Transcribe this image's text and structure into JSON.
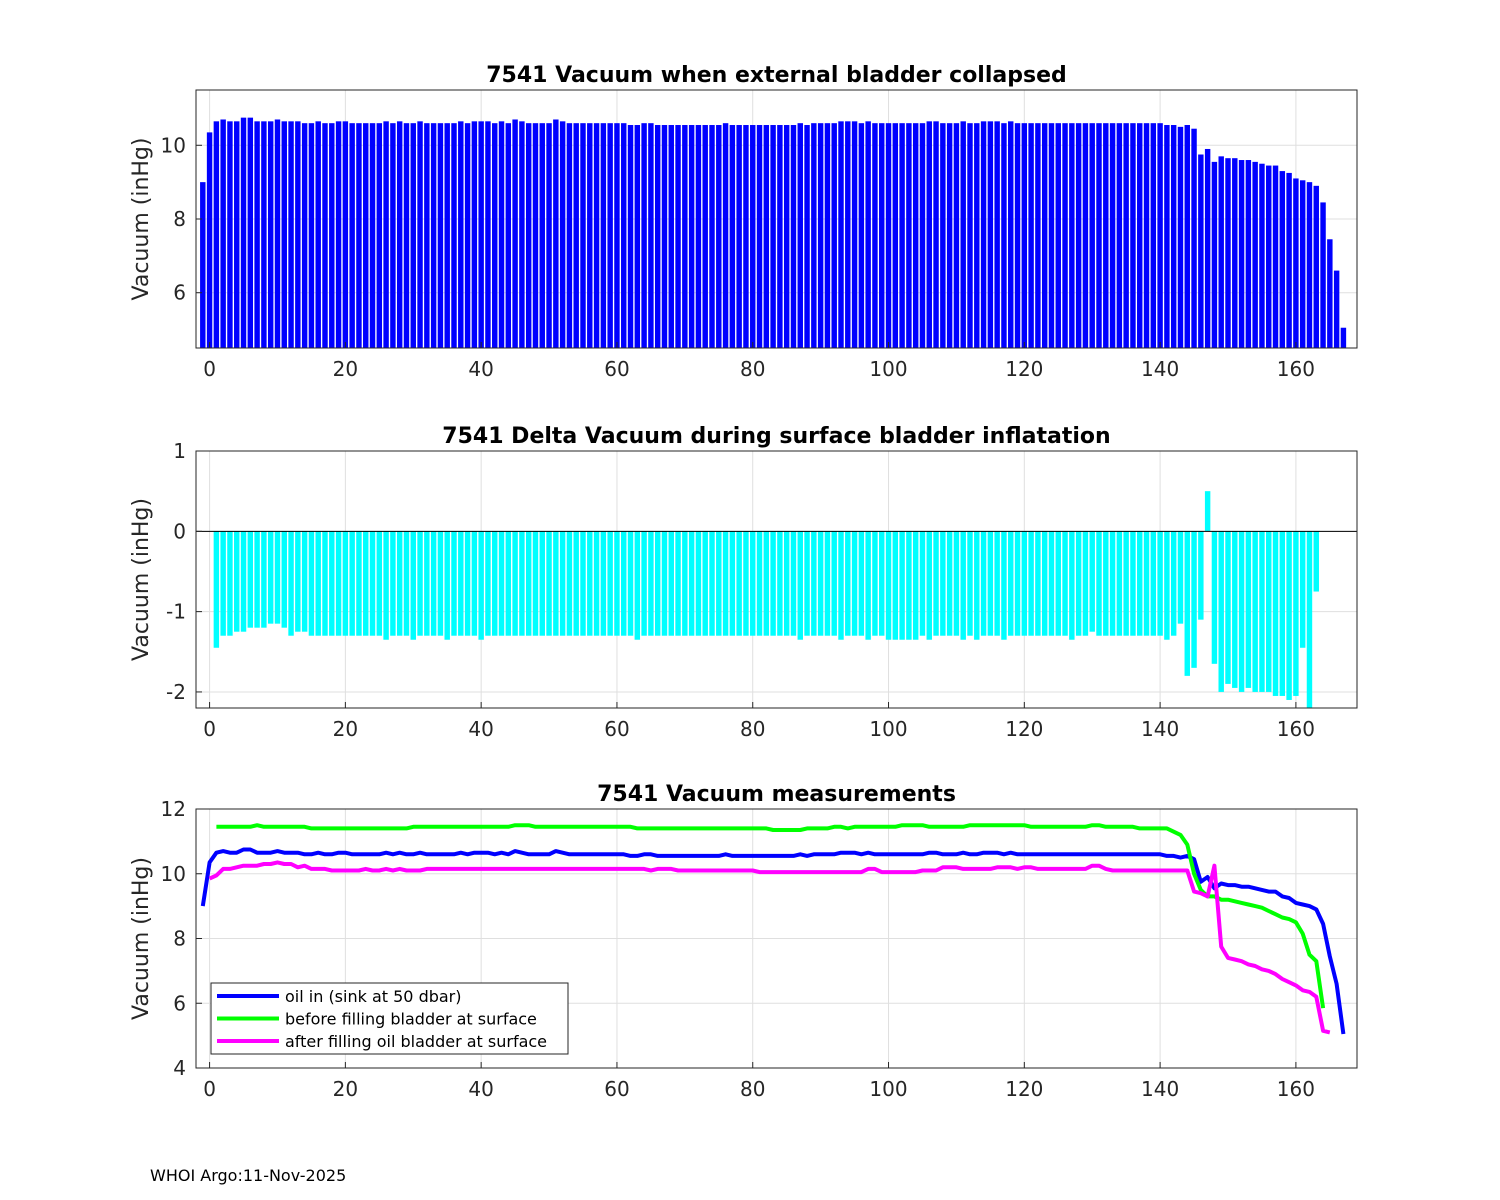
{
  "chart_data": [
    {
      "type": "bar",
      "title": "7541 Vacuum when external bladder collapsed",
      "xlabel": "",
      "ylabel": "Vacuum (inHg)",
      "xlim": [
        -2,
        169
      ],
      "ylim": [
        4.5,
        11.5
      ],
      "xticks": [
        0,
        20,
        40,
        60,
        80,
        100,
        120,
        140,
        160
      ],
      "yticks": [
        6,
        8,
        10
      ],
      "grid": true,
      "color": "#0000ff",
      "x_start": -1,
      "series": [
        {
          "name": "vacuum",
          "values": [
            9.0,
            10.35,
            10.65,
            10.7,
            10.65,
            10.65,
            10.75,
            10.75,
            10.65,
            10.65,
            10.65,
            10.7,
            10.65,
            10.65,
            10.65,
            10.6,
            10.6,
            10.65,
            10.6,
            10.6,
            10.65,
            10.65,
            10.6,
            10.6,
            10.6,
            10.6,
            10.6,
            10.65,
            10.6,
            10.65,
            10.6,
            10.6,
            10.65,
            10.6,
            10.6,
            10.6,
            10.6,
            10.6,
            10.65,
            10.6,
            10.65,
            10.65,
            10.65,
            10.6,
            10.65,
            10.6,
            10.7,
            10.65,
            10.6,
            10.6,
            10.6,
            10.6,
            10.7,
            10.65,
            10.6,
            10.6,
            10.6,
            10.6,
            10.6,
            10.6,
            10.6,
            10.6,
            10.6,
            10.55,
            10.55,
            10.6,
            10.6,
            10.55,
            10.55,
            10.55,
            10.55,
            10.55,
            10.55,
            10.55,
            10.55,
            10.55,
            10.55,
            10.6,
            10.55,
            10.55,
            10.55,
            10.55,
            10.55,
            10.55,
            10.55,
            10.55,
            10.55,
            10.55,
            10.6,
            10.55,
            10.6,
            10.6,
            10.6,
            10.6,
            10.65,
            10.65,
            10.65,
            10.6,
            10.65,
            10.6,
            10.6,
            10.6,
            10.6,
            10.6,
            10.6,
            10.6,
            10.6,
            10.65,
            10.65,
            10.6,
            10.6,
            10.6,
            10.65,
            10.6,
            10.6,
            10.65,
            10.65,
            10.65,
            10.6,
            10.65,
            10.6,
            10.6,
            10.6,
            10.6,
            10.6,
            10.6,
            10.6,
            10.6,
            10.6,
            10.6,
            10.6,
            10.6,
            10.6,
            10.6,
            10.6,
            10.6,
            10.6,
            10.6,
            10.6,
            10.6,
            10.6,
            10.6,
            10.55,
            10.55,
            10.5,
            10.55,
            10.45,
            9.75,
            9.9,
            9.55,
            9.7,
            9.65,
            9.65,
            9.6,
            9.6,
            9.55,
            9.5,
            9.45,
            9.45,
            9.3,
            9.25,
            9.1,
            9.05,
            9.0,
            8.9,
            8.45,
            7.45,
            6.6,
            5.05
          ]
        }
      ]
    },
    {
      "type": "bar",
      "title": "7541 Delta Vacuum during surface bladder inflatation",
      "xlabel": "",
      "ylabel": "Vacuum (inHg)",
      "xlim": [
        -2,
        169
      ],
      "ylim": [
        -2.2,
        1
      ],
      "xticks": [
        0,
        20,
        40,
        60,
        80,
        100,
        120,
        140,
        160
      ],
      "yticks": [
        -2,
        -1,
        0,
        1
      ],
      "grid": true,
      "color": "#00ffff",
      "x_start": 1,
      "series": [
        {
          "name": "delta",
          "values": [
            -1.45,
            -1.3,
            -1.3,
            -1.25,
            -1.25,
            -1.2,
            -1.2,
            -1.2,
            -1.15,
            -1.15,
            -1.2,
            -1.3,
            -1.25,
            -1.25,
            -1.3,
            -1.3,
            -1.3,
            -1.3,
            -1.3,
            -1.3,
            -1.3,
            -1.3,
            -1.3,
            -1.3,
            -1.3,
            -1.35,
            -1.3,
            -1.3,
            -1.3,
            -1.35,
            -1.3,
            -1.3,
            -1.3,
            -1.3,
            -1.35,
            -1.3,
            -1.3,
            -1.3,
            -1.3,
            -1.35,
            -1.3,
            -1.3,
            -1.3,
            -1.3,
            -1.3,
            -1.3,
            -1.3,
            -1.3,
            -1.3,
            -1.3,
            -1.3,
            -1.3,
            -1.3,
            -1.3,
            -1.3,
            -1.3,
            -1.3,
            -1.3,
            -1.3,
            -1.3,
            -1.3,
            -1.3,
            -1.35,
            -1.3,
            -1.3,
            -1.3,
            -1.3,
            -1.3,
            -1.3,
            -1.3,
            -1.3,
            -1.3,
            -1.3,
            -1.3,
            -1.3,
            -1.3,
            -1.3,
            -1.3,
            -1.3,
            -1.3,
            -1.3,
            -1.3,
            -1.3,
            -1.3,
            -1.3,
            -1.3,
            -1.35,
            -1.3,
            -1.3,
            -1.3,
            -1.3,
            -1.3,
            -1.35,
            -1.3,
            -1.3,
            -1.3,
            -1.35,
            -1.3,
            -1.3,
            -1.35,
            -1.35,
            -1.35,
            -1.35,
            -1.35,
            -1.3,
            -1.35,
            -1.3,
            -1.3,
            -1.3,
            -1.3,
            -1.35,
            -1.3,
            -1.35,
            -1.3,
            -1.3,
            -1.3,
            -1.35,
            -1.3,
            -1.3,
            -1.3,
            -1.3,
            -1.3,
            -1.3,
            -1.3,
            -1.3,
            -1.3,
            -1.35,
            -1.3,
            -1.3,
            -1.25,
            -1.3,
            -1.3,
            -1.3,
            -1.3,
            -1.3,
            -1.3,
            -1.3,
            -1.3,
            -1.3,
            -1.3,
            -1.35,
            -1.3,
            -1.15,
            -1.8,
            -1.7,
            -1.1,
            0.5,
            -1.65,
            -2.0,
            -1.9,
            -1.95,
            -2.0,
            -1.95,
            -2.0,
            -2.0,
            -2.0,
            -2.05,
            -2.05,
            -2.1,
            -2.05,
            -1.45,
            -2.2,
            -0.75
          ]
        }
      ]
    },
    {
      "type": "line",
      "title": "7541 Vacuum measurements",
      "xlabel": "",
      "ylabel": "Vacuum (inHg)",
      "xlim": [
        -2,
        169
      ],
      "ylim": [
        4,
        12
      ],
      "xticks": [
        0,
        20,
        40,
        60,
        80,
        100,
        120,
        140,
        160
      ],
      "yticks": [
        4,
        6,
        8,
        10,
        12
      ],
      "grid": true,
      "legend_position": "bottom-left",
      "series": [
        {
          "name": "oil in (sink at 50 dbar)",
          "color": "#0000ff",
          "x_start": -1,
          "values": [
            9.0,
            10.35,
            10.65,
            10.7,
            10.65,
            10.65,
            10.75,
            10.75,
            10.65,
            10.65,
            10.65,
            10.7,
            10.65,
            10.65,
            10.65,
            10.6,
            10.6,
            10.65,
            10.6,
            10.6,
            10.65,
            10.65,
            10.6,
            10.6,
            10.6,
            10.6,
            10.6,
            10.65,
            10.6,
            10.65,
            10.6,
            10.6,
            10.65,
            10.6,
            10.6,
            10.6,
            10.6,
            10.6,
            10.65,
            10.6,
            10.65,
            10.65,
            10.65,
            10.6,
            10.65,
            10.6,
            10.7,
            10.65,
            10.6,
            10.6,
            10.6,
            10.6,
            10.7,
            10.65,
            10.6,
            10.6,
            10.6,
            10.6,
            10.6,
            10.6,
            10.6,
            10.6,
            10.6,
            10.55,
            10.55,
            10.6,
            10.6,
            10.55,
            10.55,
            10.55,
            10.55,
            10.55,
            10.55,
            10.55,
            10.55,
            10.55,
            10.55,
            10.6,
            10.55,
            10.55,
            10.55,
            10.55,
            10.55,
            10.55,
            10.55,
            10.55,
            10.55,
            10.55,
            10.6,
            10.55,
            10.6,
            10.6,
            10.6,
            10.6,
            10.65,
            10.65,
            10.65,
            10.6,
            10.65,
            10.6,
            10.6,
            10.6,
            10.6,
            10.6,
            10.6,
            10.6,
            10.6,
            10.65,
            10.65,
            10.6,
            10.6,
            10.6,
            10.65,
            10.6,
            10.6,
            10.65,
            10.65,
            10.65,
            10.6,
            10.65,
            10.6,
            10.6,
            10.6,
            10.6,
            10.6,
            10.6,
            10.6,
            10.6,
            10.6,
            10.6,
            10.6,
            10.6,
            10.6,
            10.6,
            10.6,
            10.6,
            10.6,
            10.6,
            10.6,
            10.6,
            10.6,
            10.6,
            10.55,
            10.55,
            10.5,
            10.55,
            10.45,
            9.75,
            9.9,
            9.55,
            9.7,
            9.65,
            9.65,
            9.6,
            9.6,
            9.55,
            9.5,
            9.45,
            9.45,
            9.3,
            9.25,
            9.1,
            9.05,
            9.0,
            8.9,
            8.45,
            7.45,
            6.6,
            5.05
          ]
        },
        {
          "name": "before filling bladder at surface",
          "color": "#00ff00",
          "x_start": 1,
          "values": [
            11.45,
            11.45,
            11.45,
            11.45,
            11.45,
            11.45,
            11.5,
            11.45,
            11.45,
            11.45,
            11.45,
            11.45,
            11.45,
            11.45,
            11.4,
            11.4,
            11.4,
            11.4,
            11.4,
            11.4,
            11.4,
            11.4,
            11.4,
            11.4,
            11.4,
            11.4,
            11.4,
            11.4,
            11.4,
            11.45,
            11.45,
            11.45,
            11.45,
            11.45,
            11.45,
            11.45,
            11.45,
            11.45,
            11.45,
            11.45,
            11.45,
            11.45,
            11.45,
            11.45,
            11.5,
            11.5,
            11.5,
            11.45,
            11.45,
            11.45,
            11.45,
            11.45,
            11.45,
            11.45,
            11.45,
            11.45,
            11.45,
            11.45,
            11.45,
            11.45,
            11.45,
            11.45,
            11.4,
            11.4,
            11.4,
            11.4,
            11.4,
            11.4,
            11.4,
            11.4,
            11.4,
            11.4,
            11.4,
            11.4,
            11.4,
            11.4,
            11.4,
            11.4,
            11.4,
            11.4,
            11.4,
            11.4,
            11.35,
            11.35,
            11.35,
            11.35,
            11.35,
            11.4,
            11.4,
            11.4,
            11.4,
            11.45,
            11.45,
            11.4,
            11.45,
            11.45,
            11.45,
            11.45,
            11.45,
            11.45,
            11.45,
            11.5,
            11.5,
            11.5,
            11.5,
            11.45,
            11.45,
            11.45,
            11.45,
            11.45,
            11.45,
            11.5,
            11.5,
            11.5,
            11.5,
            11.5,
            11.5,
            11.5,
            11.5,
            11.5,
            11.45,
            11.45,
            11.45,
            11.45,
            11.45,
            11.45,
            11.45,
            11.45,
            11.45,
            11.5,
            11.5,
            11.45,
            11.45,
            11.45,
            11.45,
            11.45,
            11.4,
            11.4,
            11.4,
            11.4,
            11.4,
            11.3,
            11.2,
            10.9,
            10.0,
            9.5,
            9.3,
            9.3,
            9.2,
            9.2,
            9.15,
            9.1,
            9.05,
            9.0,
            8.95,
            8.85,
            8.75,
            8.65,
            8.6,
            8.5,
            8.15,
            7.5,
            7.3,
            5.85
          ]
        },
        {
          "name": "after filling oil bladder at surface",
          "color": "#ff00ff",
          "x_start": 0,
          "values": [
            9.85,
            9.95,
            10.15,
            10.15,
            10.2,
            10.25,
            10.25,
            10.25,
            10.3,
            10.3,
            10.35,
            10.3,
            10.3,
            10.2,
            10.25,
            10.15,
            10.15,
            10.15,
            10.1,
            10.1,
            10.1,
            10.1,
            10.1,
            10.15,
            10.1,
            10.1,
            10.15,
            10.1,
            10.15,
            10.1,
            10.1,
            10.1,
            10.15,
            10.15,
            10.15,
            10.15,
            10.15,
            10.15,
            10.15,
            10.15,
            10.15,
            10.15,
            10.15,
            10.15,
            10.15,
            10.15,
            10.15,
            10.15,
            10.15,
            10.15,
            10.15,
            10.15,
            10.15,
            10.15,
            10.15,
            10.15,
            10.15,
            10.15,
            10.15,
            10.15,
            10.15,
            10.15,
            10.15,
            10.15,
            10.15,
            10.1,
            10.15,
            10.15,
            10.15,
            10.1,
            10.1,
            10.1,
            10.1,
            10.1,
            10.1,
            10.1,
            10.1,
            10.1,
            10.1,
            10.1,
            10.1,
            10.05,
            10.05,
            10.05,
            10.05,
            10.05,
            10.05,
            10.05,
            10.05,
            10.05,
            10.05,
            10.05,
            10.05,
            10.05,
            10.05,
            10.05,
            10.05,
            10.15,
            10.15,
            10.05,
            10.05,
            10.05,
            10.05,
            10.05,
            10.05,
            10.1,
            10.1,
            10.1,
            10.2,
            10.2,
            10.2,
            10.15,
            10.15,
            10.15,
            10.15,
            10.15,
            10.2,
            10.2,
            10.2,
            10.15,
            10.2,
            10.2,
            10.15,
            10.15,
            10.15,
            10.15,
            10.15,
            10.15,
            10.15,
            10.15,
            10.25,
            10.25,
            10.15,
            10.1,
            10.1,
            10.1,
            10.1,
            10.1,
            10.1,
            10.1,
            10.1,
            10.1,
            10.1,
            10.1,
            10.1,
            9.45,
            9.4,
            9.3,
            10.25,
            7.75,
            7.4,
            7.35,
            7.3,
            7.2,
            7.15,
            7.05,
            7.0,
            6.9,
            6.75,
            6.65,
            6.55,
            6.4,
            6.35,
            6.2,
            5.15,
            5.1
          ]
        }
      ]
    }
  ],
  "footer": {
    "text": "WHOI Argo:11-Nov-2025"
  }
}
